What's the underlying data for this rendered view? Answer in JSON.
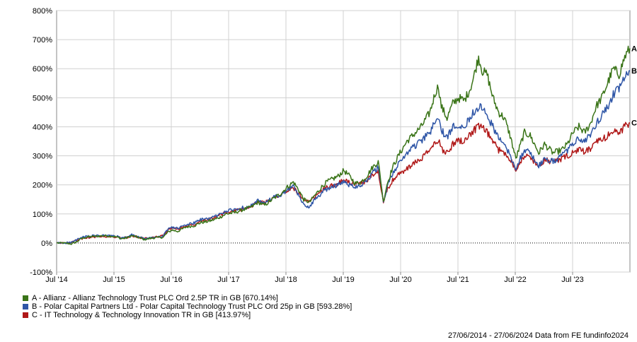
{
  "chart_data": {
    "type": "line",
    "title": "",
    "xlabel": "",
    "ylabel": "",
    "x_ticks": [
      "Jul '14",
      "Jul '15",
      "Jul '16",
      "Jul '17",
      "Jul '18",
      "Jul '19",
      "Jul '20",
      "Jul '21",
      "Jul '22",
      "Jul '23"
    ],
    "y_ticks": [
      "800%",
      "700%",
      "600%",
      "500%",
      "400%",
      "300%",
      "200%",
      "100%",
      "0%",
      "-100%"
    ],
    "xlim": [
      2014.49,
      2024.49
    ],
    "ylim": [
      -100,
      800
    ],
    "grid": true,
    "zero_line": "dotted",
    "legend_position": "bottom-left",
    "series": [
      {
        "name": "A - Allianz - Allianz Technology Trust PLC Ord 2.5P TR in GB [670.14%]",
        "end_label": "A",
        "color": "#3a7418",
        "points": [
          [
            2014.49,
            0
          ],
          [
            2014.6,
            0
          ],
          [
            2014.75,
            -3
          ],
          [
            2014.85,
            5
          ],
          [
            2014.92,
            15
          ],
          [
            2015.0,
            20
          ],
          [
            2015.1,
            22
          ],
          [
            2015.3,
            25
          ],
          [
            2015.45,
            24
          ],
          [
            2015.55,
            20
          ],
          [
            2015.62,
            15
          ],
          [
            2015.72,
            18
          ],
          [
            2015.8,
            25
          ],
          [
            2015.9,
            20
          ],
          [
            2016.02,
            12
          ],
          [
            2016.1,
            15
          ],
          [
            2016.2,
            18
          ],
          [
            2016.35,
            20
          ],
          [
            2016.42,
            35
          ],
          [
            2016.5,
            45
          ],
          [
            2016.6,
            40
          ],
          [
            2016.75,
            55
          ],
          [
            2016.9,
            60
          ],
          [
            2017.0,
            70
          ],
          [
            2017.15,
            75
          ],
          [
            2017.3,
            85
          ],
          [
            2017.45,
            100
          ],
          [
            2017.6,
            105
          ],
          [
            2017.75,
            115
          ],
          [
            2017.9,
            125
          ],
          [
            2018.0,
            140
          ],
          [
            2018.12,
            130
          ],
          [
            2018.25,
            150
          ],
          [
            2018.4,
            170
          ],
          [
            2018.5,
            190
          ],
          [
            2018.62,
            210
          ],
          [
            2018.72,
            180
          ],
          [
            2018.8,
            150
          ],
          [
            2018.9,
            140
          ],
          [
            2019.0,
            165
          ],
          [
            2019.1,
            190
          ],
          [
            2019.2,
            210
          ],
          [
            2019.3,
            220
          ],
          [
            2019.4,
            230
          ],
          [
            2019.5,
            250
          ],
          [
            2019.6,
            230
          ],
          [
            2019.7,
            205
          ],
          [
            2019.8,
            210
          ],
          [
            2019.9,
            230
          ],
          [
            2020.0,
            260
          ],
          [
            2020.1,
            280
          ],
          [
            2020.15,
            205
          ],
          [
            2020.19,
            140
          ],
          [
            2020.25,
            200
          ],
          [
            2020.35,
            260
          ],
          [
            2020.45,
            300
          ],
          [
            2020.6,
            350
          ],
          [
            2020.7,
            370
          ],
          [
            2020.85,
            400
          ],
          [
            2021.0,
            450
          ],
          [
            2021.1,
            520
          ],
          [
            2021.15,
            540
          ],
          [
            2021.2,
            470
          ],
          [
            2021.3,
            430
          ],
          [
            2021.4,
            480
          ],
          [
            2021.5,
            500
          ],
          [
            2021.6,
            490
          ],
          [
            2021.7,
            530
          ],
          [
            2021.75,
            560
          ],
          [
            2021.85,
            640
          ],
          [
            2021.92,
            590
          ],
          [
            2022.0,
            580
          ],
          [
            2022.1,
            500
          ],
          [
            2022.2,
            450
          ],
          [
            2022.3,
            430
          ],
          [
            2022.4,
            370
          ],
          [
            2022.5,
            290
          ],
          [
            2022.55,
            320
          ],
          [
            2022.65,
            380
          ],
          [
            2022.75,
            370
          ],
          [
            2022.85,
            330
          ],
          [
            2022.9,
            310
          ],
          [
            2023.0,
            340
          ],
          [
            2023.15,
            310
          ],
          [
            2023.3,
            320
          ],
          [
            2023.4,
            340
          ],
          [
            2023.5,
            380
          ],
          [
            2023.6,
            400
          ],
          [
            2023.7,
            380
          ],
          [
            2023.8,
            410
          ],
          [
            2023.9,
            470
          ],
          [
            2024.0,
            500
          ],
          [
            2024.1,
            550
          ],
          [
            2024.2,
            600
          ],
          [
            2024.3,
            580
          ],
          [
            2024.4,
            640
          ],
          [
            2024.49,
            670
          ]
        ]
      },
      {
        "name": "B - Polar Capital Partners Ltd - Polar Capital Technology Trust PLC Ord 25p in GB [593.28%]",
        "end_label": "B",
        "color": "#2f56a7",
        "points": [
          [
            2014.49,
            0
          ],
          [
            2014.6,
            0
          ],
          [
            2014.75,
            2
          ],
          [
            2014.85,
            12
          ],
          [
            2014.92,
            18
          ],
          [
            2015.0,
            22
          ],
          [
            2015.1,
            24
          ],
          [
            2015.3,
            26
          ],
          [
            2015.45,
            25
          ],
          [
            2015.55,
            22
          ],
          [
            2015.62,
            16
          ],
          [
            2015.72,
            20
          ],
          [
            2015.8,
            28
          ],
          [
            2015.9,
            22
          ],
          [
            2016.02,
            14
          ],
          [
            2016.1,
            16
          ],
          [
            2016.2,
            20
          ],
          [
            2016.35,
            24
          ],
          [
            2016.42,
            45
          ],
          [
            2016.5,
            55
          ],
          [
            2016.6,
            50
          ],
          [
            2016.75,
            62
          ],
          [
            2016.9,
            70
          ],
          [
            2017.0,
            80
          ],
          [
            2017.15,
            85
          ],
          [
            2017.3,
            95
          ],
          [
            2017.45,
            110
          ],
          [
            2017.6,
            115
          ],
          [
            2017.75,
            122
          ],
          [
            2017.9,
            130
          ],
          [
            2018.0,
            145
          ],
          [
            2018.12,
            135
          ],
          [
            2018.25,
            155
          ],
          [
            2018.4,
            165
          ],
          [
            2018.5,
            180
          ],
          [
            2018.62,
            195
          ],
          [
            2018.72,
            160
          ],
          [
            2018.8,
            130
          ],
          [
            2018.9,
            125
          ],
          [
            2019.0,
            150
          ],
          [
            2019.1,
            170
          ],
          [
            2019.2,
            185
          ],
          [
            2019.3,
            195
          ],
          [
            2019.4,
            200
          ],
          [
            2019.5,
            210
          ],
          [
            2019.6,
            200
          ],
          [
            2019.7,
            195
          ],
          [
            2019.8,
            200
          ],
          [
            2019.9,
            215
          ],
          [
            2020.0,
            240
          ],
          [
            2020.1,
            260
          ],
          [
            2020.15,
            200
          ],
          [
            2020.19,
            135
          ],
          [
            2020.25,
            190
          ],
          [
            2020.35,
            240
          ],
          [
            2020.45,
            270
          ],
          [
            2020.6,
            310
          ],
          [
            2020.7,
            330
          ],
          [
            2020.85,
            350
          ],
          [
            2021.0,
            380
          ],
          [
            2021.1,
            420
          ],
          [
            2021.15,
            430
          ],
          [
            2021.2,
            390
          ],
          [
            2021.3,
            360
          ],
          [
            2021.4,
            400
          ],
          [
            2021.5,
            410
          ],
          [
            2021.6,
            400
          ],
          [
            2021.7,
            430
          ],
          [
            2021.75,
            450
          ],
          [
            2021.85,
            470
          ],
          [
            2021.92,
            460
          ],
          [
            2022.0,
            440
          ],
          [
            2022.1,
            400
          ],
          [
            2022.2,
            360
          ],
          [
            2022.3,
            340
          ],
          [
            2022.4,
            300
          ],
          [
            2022.5,
            260
          ],
          [
            2022.55,
            280
          ],
          [
            2022.65,
            320
          ],
          [
            2022.75,
            310
          ],
          [
            2022.85,
            280
          ],
          [
            2022.9,
            265
          ],
          [
            2023.0,
            290
          ],
          [
            2023.15,
            280
          ],
          [
            2023.3,
            300
          ],
          [
            2023.4,
            320
          ],
          [
            2023.5,
            340
          ],
          [
            2023.6,
            360
          ],
          [
            2023.7,
            350
          ],
          [
            2023.8,
            370
          ],
          [
            2023.9,
            410
          ],
          [
            2024.0,
            440
          ],
          [
            2024.1,
            470
          ],
          [
            2024.2,
            510
          ],
          [
            2024.3,
            530
          ],
          [
            2024.4,
            570
          ],
          [
            2024.49,
            593
          ]
        ]
      },
      {
        "name": "C - IT Technology & Technology Innovation TR in GB [413.97%]",
        "end_label": "C",
        "color": "#b01818",
        "points": [
          [
            2014.49,
            0
          ],
          [
            2014.6,
            0
          ],
          [
            2014.75,
            3
          ],
          [
            2014.85,
            10
          ],
          [
            2014.92,
            14
          ],
          [
            2015.0,
            18
          ],
          [
            2015.1,
            20
          ],
          [
            2015.3,
            23
          ],
          [
            2015.45,
            22
          ],
          [
            2015.55,
            20
          ],
          [
            2015.62,
            16
          ],
          [
            2015.72,
            19
          ],
          [
            2015.8,
            25
          ],
          [
            2015.9,
            21
          ],
          [
            2016.02,
            15
          ],
          [
            2016.1,
            17
          ],
          [
            2016.2,
            20
          ],
          [
            2016.35,
            25
          ],
          [
            2016.42,
            42
          ],
          [
            2016.5,
            52
          ],
          [
            2016.6,
            48
          ],
          [
            2016.75,
            58
          ],
          [
            2016.9,
            65
          ],
          [
            2017.0,
            78
          ],
          [
            2017.15,
            82
          ],
          [
            2017.3,
            92
          ],
          [
            2017.45,
            105
          ],
          [
            2017.6,
            110
          ],
          [
            2017.75,
            118
          ],
          [
            2017.9,
            128
          ],
          [
            2018.0,
            142
          ],
          [
            2018.12,
            138
          ],
          [
            2018.25,
            155
          ],
          [
            2018.4,
            168
          ],
          [
            2018.5,
            178
          ],
          [
            2018.62,
            190
          ],
          [
            2018.72,
            170
          ],
          [
            2018.8,
            145
          ],
          [
            2018.9,
            140
          ],
          [
            2019.0,
            160
          ],
          [
            2019.1,
            178
          ],
          [
            2019.2,
            190
          ],
          [
            2019.3,
            198
          ],
          [
            2019.4,
            205
          ],
          [
            2019.5,
            215
          ],
          [
            2019.6,
            210
          ],
          [
            2019.7,
            200
          ],
          [
            2019.8,
            205
          ],
          [
            2019.9,
            215
          ],
          [
            2020.0,
            235
          ],
          [
            2020.1,
            245
          ],
          [
            2020.15,
            190
          ],
          [
            2020.19,
            145
          ],
          [
            2020.25,
            180
          ],
          [
            2020.35,
            215
          ],
          [
            2020.45,
            235
          ],
          [
            2020.6,
            255
          ],
          [
            2020.7,
            270
          ],
          [
            2020.85,
            290
          ],
          [
            2021.0,
            320
          ],
          [
            2021.1,
            345
          ],
          [
            2021.15,
            355
          ],
          [
            2021.2,
            325
          ],
          [
            2021.3,
            310
          ],
          [
            2021.4,
            340
          ],
          [
            2021.5,
            355
          ],
          [
            2021.6,
            350
          ],
          [
            2021.7,
            375
          ],
          [
            2021.75,
            385
          ],
          [
            2021.85,
            400
          ],
          [
            2021.92,
            395
          ],
          [
            2022.0,
            380
          ],
          [
            2022.1,
            350
          ],
          [
            2022.2,
            320
          ],
          [
            2022.3,
            310
          ],
          [
            2022.4,
            290
          ],
          [
            2022.5,
            255
          ],
          [
            2022.55,
            270
          ],
          [
            2022.65,
            300
          ],
          [
            2022.75,
            295
          ],
          [
            2022.85,
            275
          ],
          [
            2022.9,
            265
          ],
          [
            2023.0,
            285
          ],
          [
            2023.15,
            280
          ],
          [
            2023.3,
            290
          ],
          [
            2023.4,
            300
          ],
          [
            2023.5,
            310
          ],
          [
            2023.6,
            320
          ],
          [
            2023.7,
            315
          ],
          [
            2023.8,
            325
          ],
          [
            2023.9,
            345
          ],
          [
            2024.0,
            355
          ],
          [
            2024.1,
            370
          ],
          [
            2024.2,
            385
          ],
          [
            2024.3,
            380
          ],
          [
            2024.4,
            400
          ],
          [
            2024.49,
            414
          ]
        ]
      }
    ]
  },
  "legend": {
    "items": [
      {
        "text": "A - Allianz - Allianz Technology Trust PLC Ord 2.5P TR in GB [670.14%]",
        "color": "#3a7418"
      },
      {
        "text": "B - Polar Capital Partners Ltd - Polar Capital Technology Trust PLC Ord 25p in GB [593.28%]",
        "color": "#2f56a7"
      },
      {
        "text": "C - IT Technology & Technology Innovation TR in GB [413.97%]",
        "color": "#b01818"
      }
    ]
  },
  "footer": {
    "text": "27/06/2014 - 27/06/2024 Data from FE fundinfo2024"
  }
}
